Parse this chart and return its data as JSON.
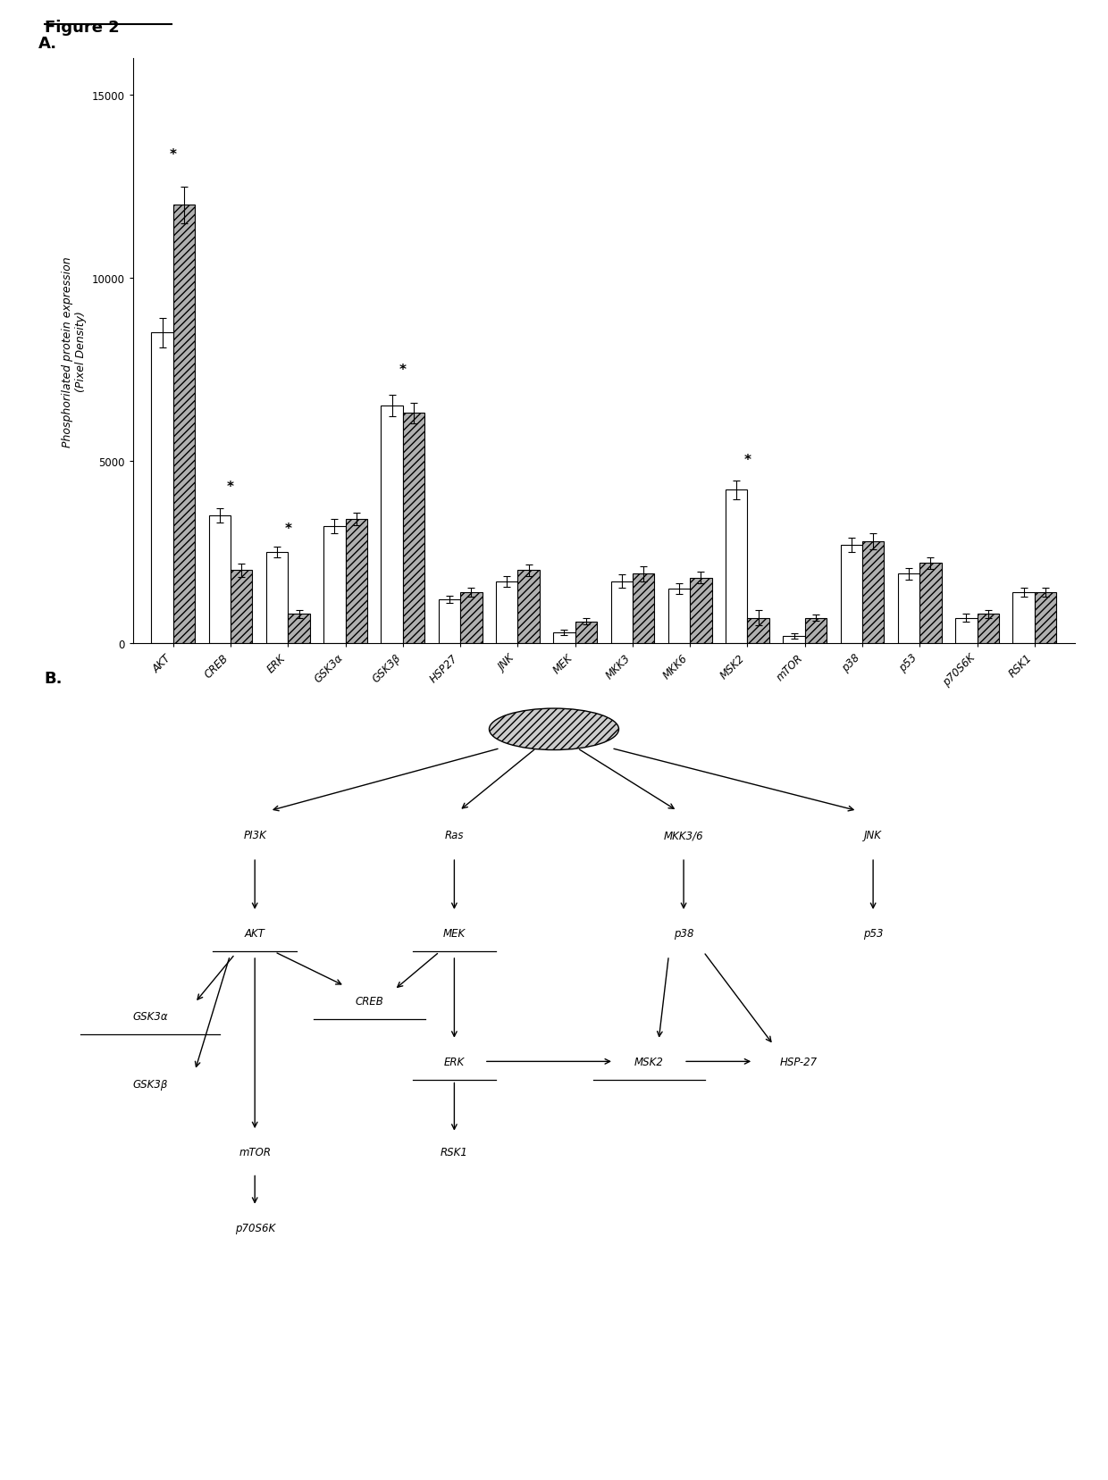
{
  "fig_title": "Figure 2",
  "panel_a_label": "A.",
  "panel_b_label": "B.",
  "ylabel": "Phosphorilated protein expression\n(Pixel Density)",
  "ylim": [
    0,
    16000
  ],
  "yticks": [
    0,
    5000,
    10000,
    15000
  ],
  "categories": [
    "AKT",
    "CREB",
    "ERK",
    "GSK3α",
    "GSK3β",
    "HSP27",
    "JNK",
    "MEK",
    "MKK3",
    "MKK6",
    "MSK2",
    "mTOR",
    "p38",
    "p53",
    "p70S6K",
    "RSK1"
  ],
  "bar1_values": [
    8500,
    3500,
    2500,
    3200,
    6500,
    1200,
    1700,
    300,
    1700,
    1500,
    4200,
    200,
    2700,
    1900,
    700,
    1400
  ],
  "bar2_values": [
    12000,
    2000,
    800,
    3400,
    6300,
    1400,
    2000,
    600,
    1900,
    1800,
    700,
    700,
    2800,
    2200,
    800,
    1400
  ],
  "bar1_errors": [
    400,
    200,
    150,
    200,
    300,
    100,
    150,
    80,
    180,
    150,
    250,
    80,
    200,
    150,
    100,
    120
  ],
  "bar2_errors": [
    500,
    180,
    100,
    180,
    280,
    120,
    160,
    90,
    200,
    160,
    200,
    90,
    220,
    160,
    110,
    130
  ],
  "star_indices": [
    0,
    1,
    2,
    4,
    10
  ],
  "bar1_facecolor": "#ffffff",
  "bar2_facecolor": "#b0b0b0",
  "bar2_hatch": "////",
  "edge_color": "#000000",
  "background": "#ffffff"
}
